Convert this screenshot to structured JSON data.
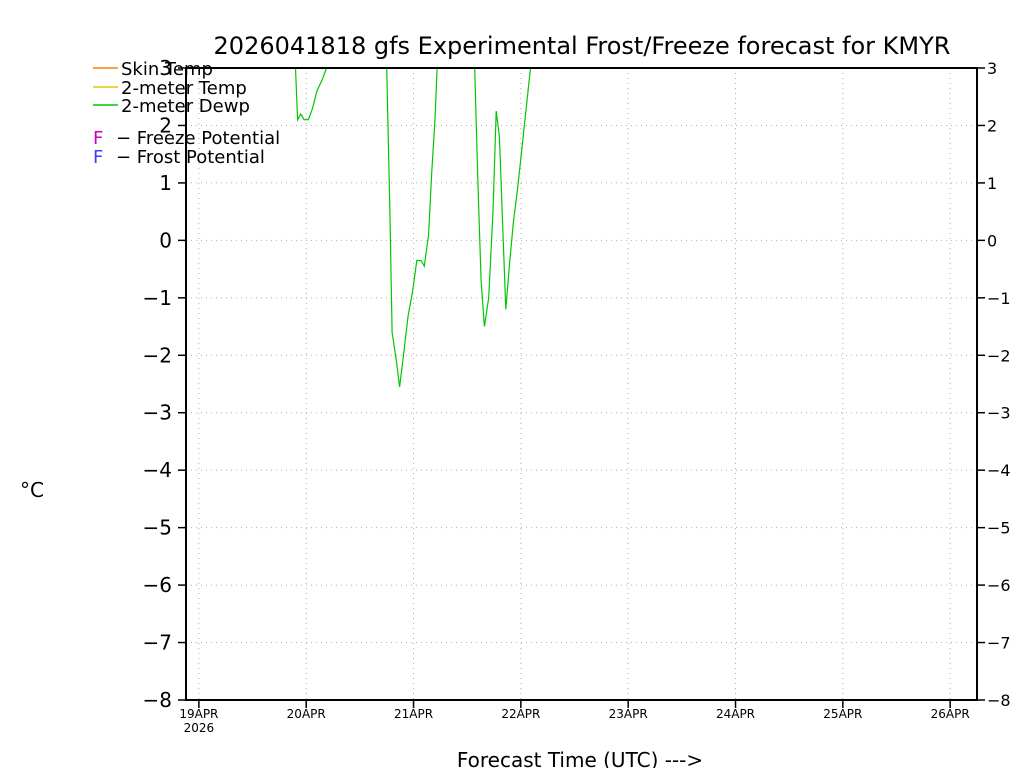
{
  "chart_data": {
    "type": "line",
    "title": "2026041818 gfs Experimental Frost/Freeze forecast for KMYR",
    "ylabel": "°C",
    "xlabel": "Forecast Time (UTC) --->",
    "ylim": [
      -8,
      3
    ],
    "yticks": [
      3,
      2,
      1,
      0,
      -1,
      -2,
      -3,
      -4,
      -5,
      -6,
      -7,
      -8
    ],
    "ytick_labels": [
      "3",
      "2",
      "1",
      "0",
      "−1",
      "−2",
      "−3",
      "−4",
      "−5",
      "−6",
      "−7",
      "−8"
    ],
    "xlim": [
      -0.12,
      7.25
    ],
    "x_unit": "days since 19APR 00Z",
    "xticks": [
      0,
      1,
      2,
      3,
      4,
      5,
      6,
      7
    ],
    "xtick_labels": [
      "19APR",
      "20APR",
      "21APR",
      "22APR",
      "23APR",
      "24APR",
      "25APR",
      "26APR"
    ],
    "xtick_year": "2026",
    "grid": true,
    "legend": [
      {
        "label": "Skin Temp",
        "color": "#ff8000",
        "kind": "line"
      },
      {
        "label": "2-meter Temp",
        "color": "#e6c800",
        "kind": "line"
      },
      {
        "label": "2-meter Dewp",
        "color": "#00c800",
        "kind": "line"
      },
      {
        "symbol": "F",
        "label": "− Freeze Potential",
        "color": "#c800c8",
        "kind": "symbol"
      },
      {
        "symbol": "F",
        "label": "− Frost Potential",
        "color": "#3c3cff",
        "kind": "symbol"
      }
    ],
    "series": [
      {
        "name": "2-meter Dewp",
        "color": "#00c800",
        "segments": [
          [
            [
              0.9,
              3.0
            ],
            [
              0.92,
              2.1
            ],
            [
              0.95,
              2.2
            ],
            [
              0.98,
              2.1
            ],
            [
              1.02,
              2.1
            ],
            [
              1.06,
              2.3
            ],
            [
              1.1,
              2.6
            ],
            [
              1.15,
              2.8
            ],
            [
              1.19,
              3.0
            ]
          ],
          [
            [
              1.75,
              3.0
            ],
            [
              1.78,
              0.5
            ],
            [
              1.8,
              -1.6
            ],
            [
              1.84,
              -2.1
            ],
            [
              1.87,
              -2.55
            ],
            [
              1.9,
              -2.1
            ],
            [
              1.95,
              -1.3
            ],
            [
              1.99,
              -0.9
            ],
            [
              2.03,
              -0.35
            ],
            [
              2.07,
              -0.35
            ],
            [
              2.1,
              -0.45
            ],
            [
              2.14,
              0.1
            ],
            [
              2.17,
              1.2
            ],
            [
              2.2,
              2.1
            ],
            [
              2.22,
              3.0
            ]
          ],
          [
            [
              2.57,
              3.0
            ],
            [
              2.6,
              1.0
            ],
            [
              2.63,
              -0.7
            ],
            [
              2.66,
              -1.5
            ],
            [
              2.7,
              -1.0
            ],
            [
              2.74,
              0.5
            ],
            [
              2.77,
              2.25
            ],
            [
              2.8,
              1.8
            ],
            [
              2.83,
              0.3
            ],
            [
              2.86,
              -1.2
            ],
            [
              2.89,
              -0.5
            ],
            [
              2.93,
              0.3
            ],
            [
              2.97,
              0.9
            ],
            [
              3.01,
              1.6
            ],
            [
              3.05,
              2.3
            ],
            [
              3.09,
              3.0
            ]
          ]
        ]
      }
    ]
  }
}
